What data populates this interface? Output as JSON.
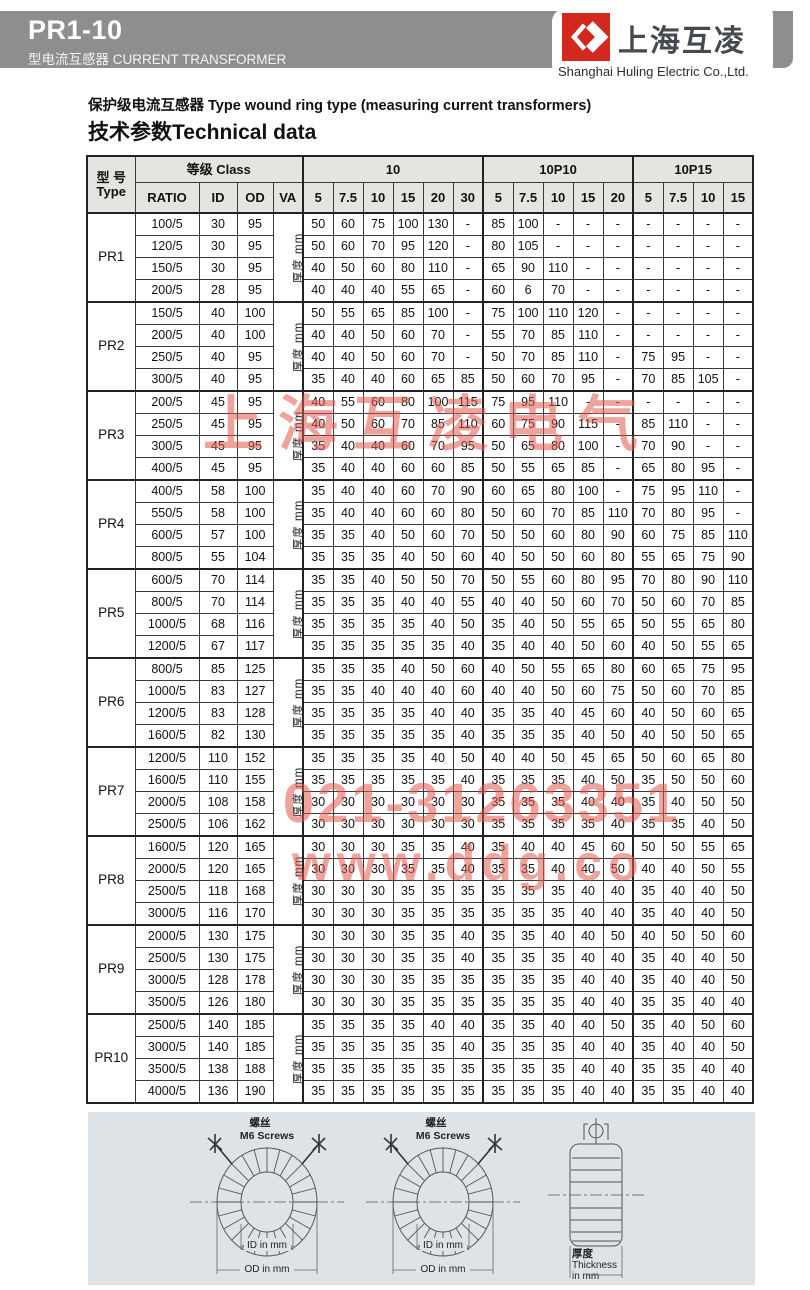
{
  "header": {
    "model": "PR1-10",
    "subtitle": "型电流互感器 CURRENT TRANSFORMER",
    "logo_cn": "上海互凌",
    "company": "Shanghai Huling Electric Co.,Ltd."
  },
  "section": {
    "line1": "保护级电流互感器 Type wound ring type (measuring current transformers)",
    "line2": "技术参数Technical data"
  },
  "table": {
    "type_cn": "型 号",
    "type_en": "Type",
    "class_header": "等级 Class",
    "sub_headers": [
      "RATIO",
      "ID",
      "OD",
      "VA"
    ],
    "va_label": "厚度 mm",
    "class_groups": [
      {
        "label": "10",
        "cols": [
          "5",
          "7.5",
          "10",
          "15",
          "20",
          "30"
        ]
      },
      {
        "label": "10P10",
        "cols": [
          "5",
          "7.5",
          "10",
          "15",
          "20"
        ]
      },
      {
        "label": "10P15",
        "cols": [
          "5",
          "7.5",
          "10",
          "15"
        ]
      }
    ],
    "groups": [
      {
        "model": "PR1",
        "rows": [
          {
            "ratio": "100/5",
            "id": "30",
            "od": "95",
            "values": [
              "50",
              "60",
              "75",
              "100",
              "130",
              "-",
              "85",
              "100",
              "-",
              "-",
              "-",
              "-",
              "-",
              "-",
              "-"
            ]
          },
          {
            "ratio": "120/5",
            "id": "30",
            "od": "95",
            "values": [
              "50",
              "60",
              "70",
              "95",
              "120",
              "-",
              "80",
              "105",
              "-",
              "-",
              "-",
              "-",
              "-",
              "-",
              "-"
            ]
          },
          {
            "ratio": "150/5",
            "id": "30",
            "od": "95",
            "values": [
              "40",
              "50",
              "60",
              "80",
              "110",
              "-",
              "65",
              "90",
              "110",
              "-",
              "-",
              "-",
              "-",
              "-",
              "-"
            ]
          },
          {
            "ratio": "200/5",
            "id": "28",
            "od": "95",
            "values": [
              "40",
              "40",
              "40",
              "55",
              "65",
              "-",
              "60",
              "6",
              "70",
              "-",
              "-",
              "-",
              "-",
              "-",
              "-"
            ]
          }
        ]
      },
      {
        "model": "PR2",
        "rows": [
          {
            "ratio": "150/5",
            "id": "40",
            "od": "100",
            "values": [
              "50",
              "55",
              "65",
              "85",
              "100",
              "-",
              "75",
              "100",
              "110",
              "120",
              "-",
              "-",
              "-",
              "-",
              "-"
            ]
          },
          {
            "ratio": "200/5",
            "id": "40",
            "od": "100",
            "values": [
              "40",
              "40",
              "50",
              "60",
              "70",
              "-",
              "55",
              "70",
              "85",
              "110",
              "-",
              "-",
              "-",
              "-",
              "-"
            ]
          },
          {
            "ratio": "250/5",
            "id": "40",
            "od": "95",
            "values": [
              "40",
              "40",
              "50",
              "60",
              "70",
              "-",
              "50",
              "70",
              "85",
              "110",
              "-",
              "75",
              "95",
              "-",
              "-"
            ]
          },
          {
            "ratio": "300/5",
            "id": "40",
            "od": "95",
            "values": [
              "35",
              "40",
              "40",
              "60",
              "65",
              "85",
              "50",
              "60",
              "70",
              "95",
              "-",
              "70",
              "85",
              "105",
              "-"
            ]
          }
        ]
      },
      {
        "model": "PR3",
        "rows": [
          {
            "ratio": "200/5",
            "id": "45",
            "od": "95",
            "values": [
              "40",
              "55",
              "60",
              "80",
              "100",
              "115",
              "75",
              "95",
              "110",
              "-",
              "-",
              "-",
              "-",
              "-",
              "-"
            ]
          },
          {
            "ratio": "250/5",
            "id": "45",
            "od": "95",
            "values": [
              "40",
              "50",
              "60",
              "70",
              "85",
              "110",
              "60",
              "75",
              "90",
              "115",
              "-",
              "85",
              "110",
              "-",
              "-"
            ]
          },
          {
            "ratio": "300/5",
            "id": "45",
            "od": "95",
            "values": [
              "35",
              "40",
              "40",
              "60",
              "70",
              "95",
              "50",
              "65",
              "80",
              "100",
              "-",
              "70",
              "90",
              "-",
              "-"
            ]
          },
          {
            "ratio": "400/5",
            "id": "45",
            "od": "95",
            "values": [
              "35",
              "40",
              "40",
              "60",
              "60",
              "85",
              "50",
              "55",
              "65",
              "85",
              "-",
              "65",
              "80",
              "95",
              "-"
            ]
          }
        ]
      },
      {
        "model": "PR4",
        "rows": [
          {
            "ratio": "400/5",
            "id": "58",
            "od": "100",
            "values": [
              "35",
              "40",
              "40",
              "60",
              "70",
              "90",
              "60",
              "65",
              "80",
              "100",
              "-",
              "75",
              "95",
              "110",
              "-"
            ]
          },
          {
            "ratio": "550/5",
            "id": "58",
            "od": "100",
            "values": [
              "35",
              "40",
              "40",
              "60",
              "60",
              "80",
              "50",
              "60",
              "70",
              "85",
              "110",
              "70",
              "80",
              "95",
              "-"
            ]
          },
          {
            "ratio": "600/5",
            "id": "57",
            "od": "100",
            "values": [
              "35",
              "35",
              "40",
              "50",
              "60",
              "70",
              "50",
              "50",
              "60",
              "80",
              "90",
              "60",
              "75",
              "85",
              "110"
            ]
          },
          {
            "ratio": "800/5",
            "id": "55",
            "od": "104",
            "values": [
              "35",
              "35",
              "35",
              "40",
              "50",
              "60",
              "40",
              "50",
              "50",
              "60",
              "80",
              "55",
              "65",
              "75",
              "90"
            ]
          }
        ]
      },
      {
        "model": "PR5",
        "rows": [
          {
            "ratio": "600/5",
            "id": "70",
            "od": "114",
            "values": [
              "35",
              "35",
              "40",
              "50",
              "50",
              "70",
              "50",
              "55",
              "60",
              "80",
              "95",
              "70",
              "80",
              "90",
              "110"
            ]
          },
          {
            "ratio": "800/5",
            "id": "70",
            "od": "114",
            "values": [
              "35",
              "35",
              "35",
              "40",
              "40",
              "55",
              "40",
              "40",
              "50",
              "60",
              "70",
              "50",
              "60",
              "70",
              "85"
            ]
          },
          {
            "ratio": "1000/5",
            "id": "68",
            "od": "116",
            "values": [
              "35",
              "35",
              "35",
              "35",
              "40",
              "50",
              "35",
              "40",
              "50",
              "55",
              "65",
              "50",
              "55",
              "65",
              "80"
            ]
          },
          {
            "ratio": "1200/5",
            "id": "67",
            "od": "117",
            "values": [
              "35",
              "35",
              "35",
              "35",
              "35",
              "40",
              "35",
              "40",
              "40",
              "50",
              "60",
              "40",
              "50",
              "55",
              "65"
            ]
          }
        ]
      },
      {
        "model": "PR6",
        "rows": [
          {
            "ratio": "800/5",
            "id": "85",
            "od": "125",
            "values": [
              "35",
              "35",
              "35",
              "40",
              "50",
              "60",
              "40",
              "50",
              "55",
              "65",
              "80",
              "60",
              "65",
              "75",
              "95"
            ]
          },
          {
            "ratio": "1000/5",
            "id": "83",
            "od": "127",
            "values": [
              "35",
              "35",
              "40",
              "40",
              "40",
              "60",
              "40",
              "40",
              "50",
              "60",
              "75",
              "50",
              "60",
              "70",
              "85"
            ]
          },
          {
            "ratio": "1200/5",
            "id": "83",
            "od": "128",
            "values": [
              "35",
              "35",
              "35",
              "35",
              "40",
              "40",
              "35",
              "35",
              "40",
              "45",
              "60",
              "40",
              "50",
              "60",
              "65"
            ]
          },
          {
            "ratio": "1600/5",
            "id": "82",
            "od": "130",
            "values": [
              "35",
              "35",
              "35",
              "35",
              "35",
              "40",
              "35",
              "35",
              "35",
              "40",
              "50",
              "40",
              "50",
              "50",
              "65"
            ]
          }
        ]
      },
      {
        "model": "PR7",
        "rows": [
          {
            "ratio": "1200/5",
            "id": "110",
            "od": "152",
            "values": [
              "35",
              "35",
              "35",
              "35",
              "40",
              "50",
              "40",
              "40",
              "50",
              "45",
              "65",
              "50",
              "60",
              "65",
              "80"
            ]
          },
          {
            "ratio": "1600/5",
            "id": "110",
            "od": "155",
            "values": [
              "35",
              "35",
              "35",
              "35",
              "35",
              "40",
              "35",
              "35",
              "35",
              "40",
              "50",
              "35",
              "50",
              "50",
              "60"
            ]
          },
          {
            "ratio": "2000/5",
            "id": "108",
            "od": "158",
            "values": [
              "30",
              "30",
              "30",
              "30",
              "30",
              "30",
              "35",
              "35",
              "35",
              "40",
              "40",
              "35",
              "40",
              "50",
              "50"
            ]
          },
          {
            "ratio": "2500/5",
            "id": "106",
            "od": "162",
            "values": [
              "30",
              "30",
              "30",
              "30",
              "30",
              "30",
              "35",
              "35",
              "35",
              "35",
              "40",
              "35",
              "35",
              "40",
              "50"
            ]
          }
        ]
      },
      {
        "model": "PR8",
        "rows": [
          {
            "ratio": "1600/5",
            "id": "120",
            "od": "165",
            "values": [
              "30",
              "30",
              "30",
              "35",
              "35",
              "40",
              "35",
              "40",
              "40",
              "45",
              "60",
              "50",
              "50",
              "55",
              "65"
            ]
          },
          {
            "ratio": "2000/5",
            "id": "120",
            "od": "165",
            "values": [
              "30",
              "30",
              "30",
              "35",
              "35",
              "40",
              "35",
              "35",
              "40",
              "40",
              "50",
              "40",
              "40",
              "50",
              "55"
            ]
          },
          {
            "ratio": "2500/5",
            "id": "118",
            "od": "168",
            "values": [
              "30",
              "30",
              "30",
              "35",
              "35",
              "35",
              "35",
              "35",
              "35",
              "40",
              "40",
              "35",
              "40",
              "40",
              "50"
            ]
          },
          {
            "ratio": "3000/5",
            "id": "116",
            "od": "170",
            "values": [
              "30",
              "30",
              "30",
              "35",
              "35",
              "35",
              "35",
              "35",
              "35",
              "40",
              "40",
              "35",
              "40",
              "40",
              "50"
            ]
          }
        ]
      },
      {
        "model": "PR9",
        "rows": [
          {
            "ratio": "2000/5",
            "id": "130",
            "od": "175",
            "values": [
              "30",
              "30",
              "30",
              "35",
              "35",
              "40",
              "35",
              "35",
              "40",
              "40",
              "50",
              "40",
              "50",
              "50",
              "60"
            ]
          },
          {
            "ratio": "2500/5",
            "id": "130",
            "od": "175",
            "values": [
              "30",
              "30",
              "30",
              "35",
              "35",
              "40",
              "35",
              "35",
              "35",
              "40",
              "40",
              "35",
              "40",
              "40",
              "50"
            ]
          },
          {
            "ratio": "3000/5",
            "id": "128",
            "od": "178",
            "values": [
              "30",
              "30",
              "30",
              "35",
              "35",
              "35",
              "35",
              "35",
              "35",
              "40",
              "40",
              "35",
              "40",
              "40",
              "50"
            ]
          },
          {
            "ratio": "3500/5",
            "id": "126",
            "od": "180",
            "values": [
              "30",
              "30",
              "30",
              "35",
              "35",
              "35",
              "35",
              "35",
              "35",
              "40",
              "40",
              "35",
              "35",
              "40",
              "40"
            ]
          }
        ]
      },
      {
        "model": "PR10",
        "rows": [
          {
            "ratio": "2500/5",
            "id": "140",
            "od": "185",
            "values": [
              "35",
              "35",
              "35",
              "35",
              "40",
              "40",
              "35",
              "35",
              "40",
              "40",
              "50",
              "35",
              "40",
              "50",
              "60"
            ]
          },
          {
            "ratio": "3000/5",
            "id": "140",
            "od": "185",
            "values": [
              "35",
              "35",
              "35",
              "35",
              "35",
              "40",
              "35",
              "35",
              "35",
              "40",
              "40",
              "35",
              "40",
              "40",
              "50"
            ]
          },
          {
            "ratio": "3500/5",
            "id": "138",
            "od": "188",
            "values": [
              "35",
              "35",
              "35",
              "35",
              "35",
              "35",
              "35",
              "35",
              "35",
              "40",
              "40",
              "35",
              "35",
              "40",
              "40"
            ]
          },
          {
            "ratio": "4000/5",
            "id": "136",
            "od": "190",
            "values": [
              "35",
              "35",
              "35",
              "35",
              "35",
              "35",
              "35",
              "35",
              "35",
              "40",
              "40",
              "35",
              "35",
              "40",
              "40"
            ]
          }
        ]
      }
    ]
  },
  "watermarks": {
    "wm1": "上海互凌电气",
    "wm2": "021-31263351",
    "wm3": "www.ddg.co"
  },
  "diagrams": {
    "screw_cn": "螺丝",
    "screw_en": "M6 Screws",
    "id_label": "ID in mm",
    "od_label": "OD in mm",
    "thickness_cn": "厚度",
    "thickness_en": "Thickness",
    "thickness_unit": "in mm"
  },
  "colors": {
    "banner_gray": "#8d8e8d",
    "logo_red": "#d3281e",
    "header_bg": "#e3e5e0",
    "panel_bg": "#dde3e7",
    "watermark_red": "#e1584c"
  }
}
